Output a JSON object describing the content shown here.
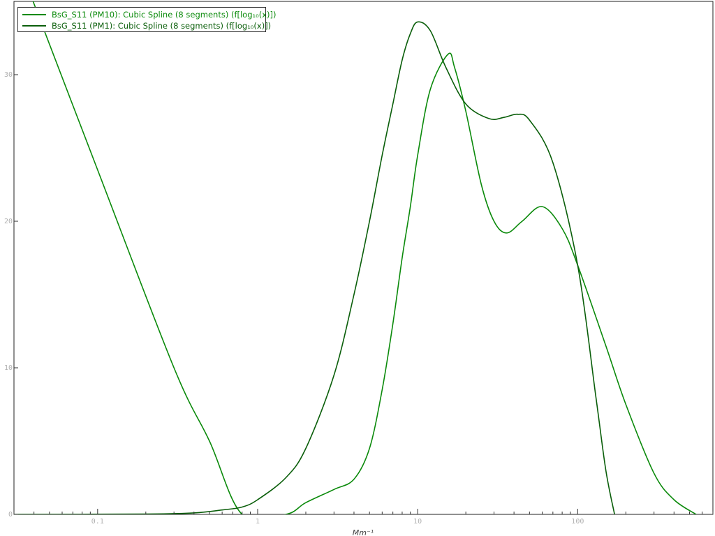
{
  "chart_data": {
    "type": "line",
    "title": "",
    "xlabel": "Mm⁻¹",
    "ylabel": "",
    "x_scale": "log",
    "xlim": [
      0.03,
      700
    ],
    "ylim": [
      0,
      35
    ],
    "x_ticks": [
      {
        "value": 0.1,
        "label": "0.1"
      },
      {
        "value": 1,
        "label": "1"
      },
      {
        "value": 10,
        "label": "10"
      },
      {
        "value": 100,
        "label": "100"
      }
    ],
    "y_ticks": [
      {
        "value": 0,
        "label": "0"
      },
      {
        "value": 10,
        "label": "10"
      },
      {
        "value": 20,
        "label": "20"
      },
      {
        "value": 30,
        "label": "30"
      }
    ],
    "grid": false,
    "legend": "top-left",
    "series": [
      {
        "name": "BsG_S11 (PM10): Cubic Spline (8 segments) (f[log₁₀(x)])",
        "color": "#0b8a0b",
        "points": [
          [
            0.035,
            36.5
          ],
          [
            0.1,
            23.5
          ],
          [
            0.3,
            10.0
          ],
          [
            0.5,
            5.0
          ],
          [
            0.8,
            0.0
          ],
          [
            1.5,
            0.0
          ],
          [
            2.0,
            0.8
          ],
          [
            3.0,
            1.7
          ],
          [
            4.0,
            2.4
          ],
          [
            5.0,
            4.5
          ],
          [
            6.0,
            8.5
          ],
          [
            7.0,
            13.0
          ],
          [
            8.0,
            17.5
          ],
          [
            9.0,
            21.0
          ],
          [
            10.0,
            24.5
          ],
          [
            12.0,
            29.0
          ],
          [
            15.5,
            31.4
          ],
          [
            17.0,
            30.5
          ],
          [
            20.0,
            27.5
          ],
          [
            25.0,
            22.5
          ],
          [
            30.0,
            20.0
          ],
          [
            36.0,
            19.2
          ],
          [
            45.0,
            20.0
          ],
          [
            60.0,
            21.0
          ],
          [
            80.0,
            19.5
          ],
          [
            100.0,
            17.0
          ],
          [
            150.0,
            11.5
          ],
          [
            200.0,
            7.5
          ],
          [
            300.0,
            2.8
          ],
          [
            400.0,
            1.0
          ],
          [
            550.0,
            0.0
          ]
        ]
      },
      {
        "name": "BsG_S11 (PM1): Cubic Spline (8 segments) (f[log₁₀(x)])",
        "color": "#0a5e0a",
        "points": [
          [
            0.03,
            0.0
          ],
          [
            0.2,
            0.02
          ],
          [
            0.4,
            0.1
          ],
          [
            0.6,
            0.3
          ],
          [
            0.8,
            0.5
          ],
          [
            1.0,
            1.0
          ],
          [
            1.5,
            2.5
          ],
          [
            2.0,
            4.5
          ],
          [
            3.0,
            9.5
          ],
          [
            4.0,
            15.0
          ],
          [
            5.0,
            20.0
          ],
          [
            6.0,
            24.5
          ],
          [
            7.0,
            28.0
          ],
          [
            8.0,
            31.0
          ],
          [
            9.0,
            32.8
          ],
          [
            10.0,
            33.6
          ],
          [
            12.0,
            33.0
          ],
          [
            15.0,
            30.5
          ],
          [
            20.0,
            28.0
          ],
          [
            28.0,
            27.0
          ],
          [
            35.0,
            27.1
          ],
          [
            42.0,
            27.3
          ],
          [
            50.0,
            26.9
          ],
          [
            70.0,
            24.0
          ],
          [
            100.0,
            17.0
          ],
          [
            130.0,
            8.0
          ],
          [
            150.0,
            3.0
          ],
          [
            170.0,
            0.0
          ]
        ]
      }
    ]
  }
}
